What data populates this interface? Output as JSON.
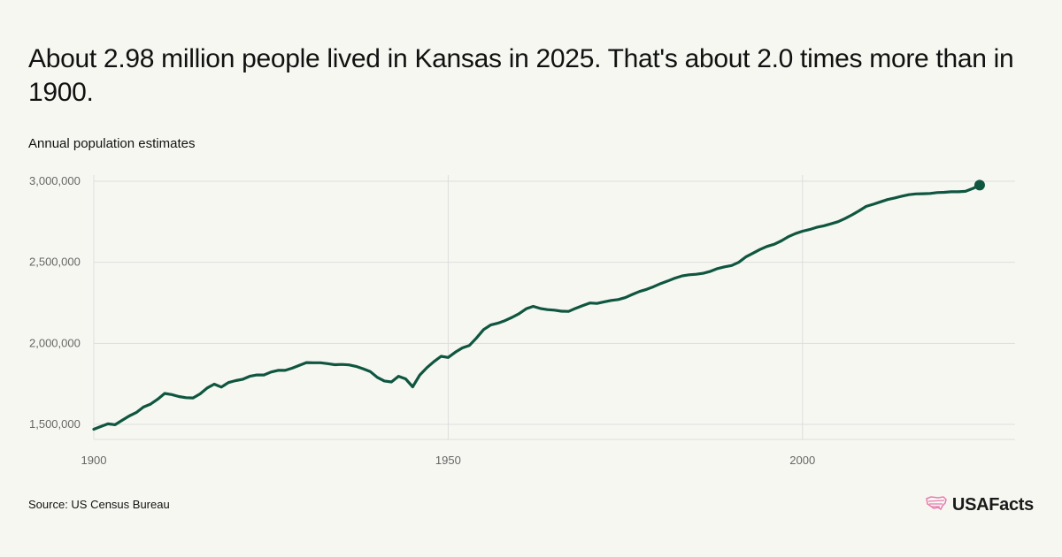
{
  "headline": "About 2.98 million people lived in Kansas in 2025. That's about 2.0 times more than in 1900.",
  "subtitle": "Annual population estimates",
  "source": "Source: US Census Bureau",
  "brand": {
    "name": "USAFacts",
    "logo_icon": "us-map-icon",
    "logo_color": "#e87cb0"
  },
  "colors": {
    "line": "#0f5640",
    "grid": "#dddddd",
    "axis_text": "#666666",
    "background": "#f7f7f2"
  },
  "chart_data": {
    "type": "line",
    "title": "About 2.98 million people lived in Kansas in 2025. That's about 2.0 times more than in 1900.",
    "subtitle": "Annual population estimates",
    "xlabel": "",
    "ylabel": "",
    "x_ticks": [
      1900,
      1950,
      2000
    ],
    "y_ticks": [
      1500000,
      2000000,
      2500000,
      3000000
    ],
    "y_tick_labels": [
      "1,500,000",
      "2,000,000",
      "2,500,000",
      "3,000,000"
    ],
    "xlim": [
      1900,
      2030
    ],
    "ylim": [
      1400000,
      3000000
    ],
    "grid": true,
    "end_marker": true,
    "series": [
      {
        "x": [
          1900,
          1901,
          1902,
          1903,
          1904,
          1905,
          1906,
          1907,
          1908,
          1909,
          1910,
          1911,
          1912,
          1913,
          1914,
          1915,
          1916,
          1917,
          1918,
          1919,
          1920,
          1921,
          1922,
          1923,
          1924,
          1925,
          1926,
          1927,
          1928,
          1929,
          1930,
          1931,
          1932,
          1933,
          1934,
          1935,
          1936,
          1937,
          1938,
          1939,
          1940,
          1941,
          1942,
          1943,
          1944,
          1945,
          1946,
          1947,
          1948,
          1949,
          1950,
          1951,
          1952,
          1953,
          1954,
          1955,
          1956,
          1957,
          1958,
          1959,
          1960,
          1961,
          1962,
          1963,
          1964,
          1965,
          1966,
          1967,
          1968,
          1969,
          1970,
          1971,
          1972,
          1973,
          1974,
          1975,
          1976,
          1977,
          1978,
          1979,
          1980,
          1981,
          1982,
          1983,
          1984,
          1985,
          1986,
          1987,
          1988,
          1989,
          1990,
          1991,
          1992,
          1993,
          1994,
          1995,
          1996,
          1997,
          1998,
          1999,
          2000,
          2001,
          2002,
          2003,
          2004,
          2005,
          2006,
          2007,
          2008,
          2009,
          2010,
          2011,
          2012,
          2013,
          2014,
          2015,
          2016,
          2017,
          2018,
          2019,
          2020,
          2021,
          2022,
          2023,
          2024,
          2025
        ],
        "values": [
          1470000,
          1487000,
          1503000,
          1498000,
          1525000,
          1552000,
          1573000,
          1607000,
          1625000,
          1655000,
          1691000,
          1684000,
          1672000,
          1665000,
          1663000,
          1688000,
          1725000,
          1748000,
          1730000,
          1758000,
          1770000,
          1778000,
          1797000,
          1805000,
          1805000,
          1823000,
          1833000,
          1833000,
          1847000,
          1864000,
          1881000,
          1880000,
          1880000,
          1875000,
          1868000,
          1870000,
          1867000,
          1858000,
          1843000,
          1826000,
          1790000,
          1768000,
          1762000,
          1797000,
          1781000,
          1732000,
          1805000,
          1850000,
          1888000,
          1920000,
          1913000,
          1945000,
          1972000,
          1987000,
          2033000,
          2085000,
          2113000,
          2124000,
          2140000,
          2160000,
          2183000,
          2213000,
          2228000,
          2215000,
          2208000,
          2205000,
          2198000,
          2197000,
          2216000,
          2233000,
          2249000,
          2246000,
          2256000,
          2265000,
          2270000,
          2282000,
          2302000,
          2320000,
          2333000,
          2350000,
          2369000,
          2385000,
          2402000,
          2416000,
          2423000,
          2426000,
          2432000,
          2444000,
          2461000,
          2472000,
          2480000,
          2500000,
          2533000,
          2556000,
          2579000,
          2598000,
          2611000,
          2632000,
          2658000,
          2677000,
          2692000,
          2702000,
          2716000,
          2725000,
          2737000,
          2750000,
          2770000,
          2793000,
          2818000,
          2845000,
          2858000,
          2873000,
          2887000,
          2897000,
          2908000,
          2917000,
          2922000,
          2923000,
          2925000,
          2930000,
          2932000,
          2935000,
          2935000,
          2938000,
          2955000,
          2976000
        ]
      }
    ]
  }
}
